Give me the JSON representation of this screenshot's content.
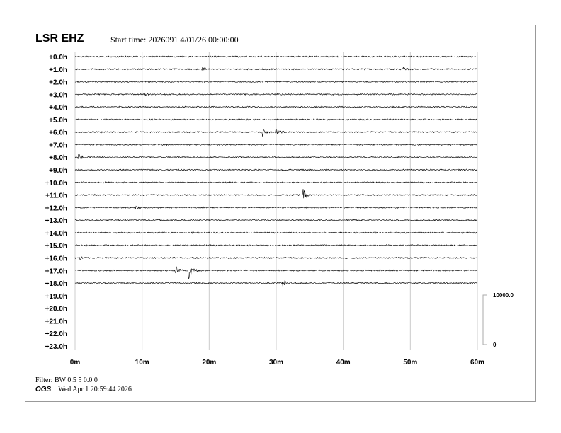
{
  "header": {
    "station": "LSR EHZ",
    "start_time": "Start time: 2026091  4/01/26 00:00:00"
  },
  "footer": {
    "filter": "Filter: BW 0.5 5 0.0 0",
    "org": "OGS",
    "generated": "Wed Apr  1 20:59:44 2026"
  },
  "chart_data": {
    "type": "line",
    "subtype": "helicorder",
    "row_labels": [
      "+0.0h",
      "+1.0h",
      "+2.0h",
      "+3.0h",
      "+4.0h",
      "+5.0h",
      "+6.0h",
      "+7.0h",
      "+8.0h",
      "+9.0h",
      "+10.0h",
      "+11.0h",
      "+12.0h",
      "+13.0h",
      "+14.0h",
      "+15.0h",
      "+16.0h",
      "+17.0h",
      "+18.0h",
      "+19.0h",
      "+20.0h",
      "+21.0h",
      "+22.0h",
      "+23.0h"
    ],
    "rows_with_data": 19,
    "x_ticks": [
      "0m",
      "10m",
      "20m",
      "30m",
      "40m",
      "50m",
      "60m"
    ],
    "xlim": [
      0,
      60
    ],
    "grid": "vertical",
    "trace_color": "#000000",
    "grid_color": "#cccccc",
    "scale_bar": {
      "top_label": "10000.0",
      "bottom_label": "0",
      "max": 10000
    },
    "events": [
      {
        "hour": 1,
        "minute": 19,
        "amplitude": 500
      },
      {
        "hour": 1,
        "minute": 28,
        "amplitude": 300
      },
      {
        "hour": 1,
        "minute": 49,
        "amplitude": 400
      },
      {
        "hour": 3,
        "minute": 10,
        "amplitude": 300
      },
      {
        "hour": 6,
        "minute": 28,
        "amplitude": 900
      },
      {
        "hour": 6,
        "minute": 30,
        "amplitude": 600
      },
      {
        "hour": 8,
        "minute": 0.5,
        "amplitude": 700
      },
      {
        "hour": 11,
        "minute": 34,
        "amplitude": 1200
      },
      {
        "hour": 12,
        "minute": 9,
        "amplitude": 300
      },
      {
        "hour": 16,
        "minute": 0.8,
        "amplitude": 300
      },
      {
        "hour": 17,
        "minute": 15,
        "amplitude": 900
      },
      {
        "hour": 17,
        "minute": 17,
        "amplitude": 1500
      },
      {
        "hour": 18,
        "minute": 31,
        "amplitude": 700
      }
    ]
  }
}
